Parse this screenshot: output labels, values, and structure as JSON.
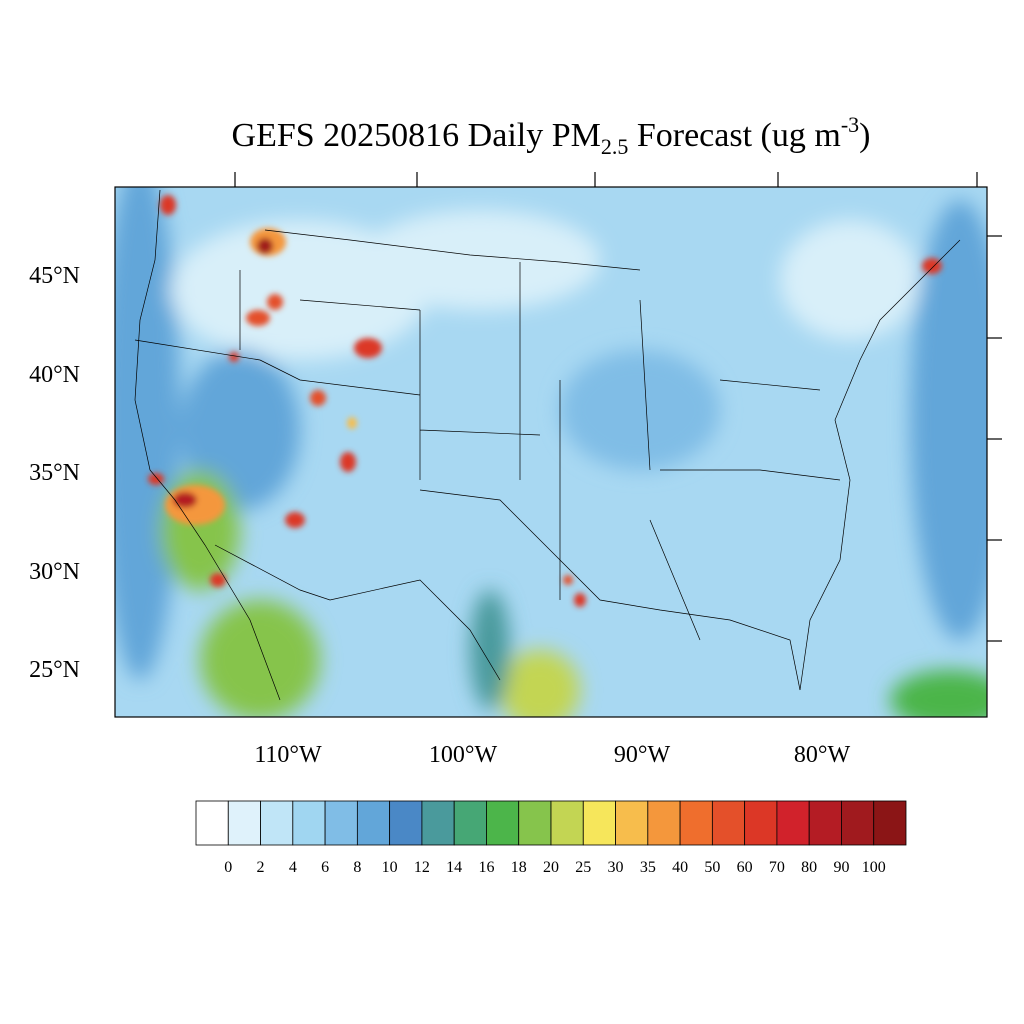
{
  "title": {
    "main": "GEFS 20250816 Daily PM",
    "sub": "2.5",
    "rest": " Forecast (ug m",
    "sup": "-3",
    "end": ")"
  },
  "lat_labels": [
    "45°N",
    "40°N",
    "35°N",
    "30°N",
    "25°N"
  ],
  "lon_labels": [
    "110°W",
    "100°W",
    "90°W",
    "80°W"
  ],
  "colorbar": {
    "labels": [
      "0",
      "2",
      "4",
      "6",
      "8",
      "10",
      "12",
      "14",
      "16",
      "18",
      "20",
      "25",
      "30",
      "35",
      "40",
      "50",
      "60",
      "70",
      "80",
      "90",
      "100"
    ],
    "colors": [
      "#ffffff",
      "#dff2fb",
      "#c0e5f7",
      "#a0d6f1",
      "#80bde6",
      "#62a6d9",
      "#4a88c6",
      "#4a9a9c",
      "#46a775",
      "#4cb54a",
      "#86c44c",
      "#c3d553",
      "#f6e65b",
      "#f7bd4c",
      "#f4973c",
      "#ef6e2d",
      "#e4502a",
      "#dc3726",
      "#d1222b",
      "#b41c24",
      "#a01a1e",
      "#8b1516"
    ]
  }
}
